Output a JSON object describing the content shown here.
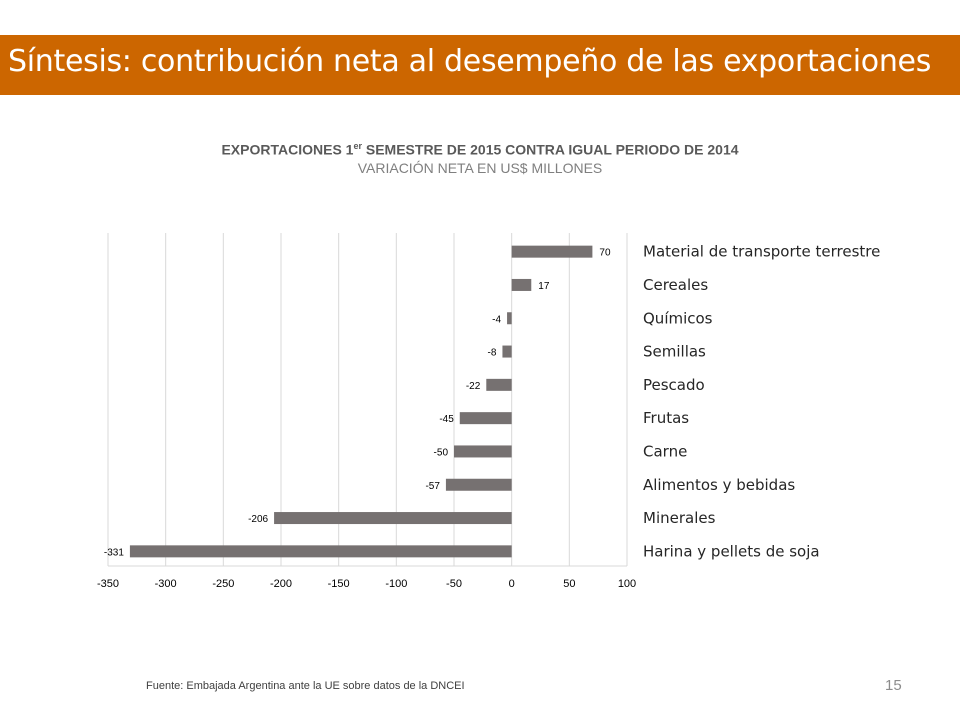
{
  "header": {
    "title": "Síntesis: contribución neta al desempeño de las exportaciones"
  },
  "colors": {
    "header_bg": "#cc6600",
    "bar": "#767171",
    "grid": "#d9d9d9",
    "label_text": "#262626"
  },
  "chart_data": {
    "type": "bar",
    "orientation": "horizontal",
    "title_main": "EXPORTACIONES 1",
    "title_sup": "er",
    "title_rest": " SEMESTRE DE 2015 CONTRA IGUAL PERIODO DE 2014",
    "subtitle": "VARIACIÓN NETA EN US$ MILLONES",
    "categories": [
      "Material de transporte terrestre",
      "Cereales",
      "Químicos",
      "Semillas",
      "Pescado",
      "Frutas",
      "Carne",
      "Alimentos y bebidas",
      "Minerales",
      "Harina y pellets de soja"
    ],
    "values": [
      70,
      17,
      -4,
      -8,
      -22,
      -45,
      -50,
      -57,
      -206,
      -331
    ],
    "value_labels": [
      "70",
      "17",
      "-4",
      "-8",
      "-22",
      "-45",
      "-50",
      "-57",
      "-206",
      "-331"
    ],
    "xlim": [
      -350,
      100
    ],
    "xticks": [
      -350,
      -300,
      -250,
      -200,
      -150,
      -100,
      -50,
      0,
      50,
      100
    ],
    "xtick_labels": [
      "-350",
      "-300",
      "-250",
      "-200",
      "-150",
      "-100",
      "-50",
      "0",
      "50",
      "100"
    ],
    "grid": true,
    "legend": "none"
  },
  "footer": {
    "source": "Fuente: Embajada Argentina ante la UE sobre datos de la DNCEI",
    "page": "15"
  }
}
